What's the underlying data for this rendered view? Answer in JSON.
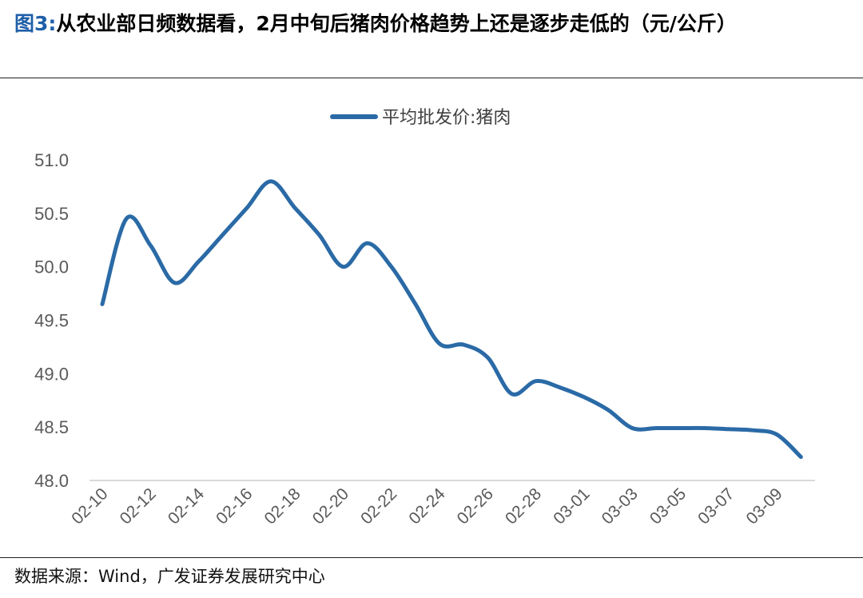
{
  "figure": {
    "label": "图3:",
    "title": "从农业部日频数据看，2月中旬后猪肉价格趋势上还是逐步走低的（元/公斤）"
  },
  "source": "数据来源：Wind，广发证券发展研究中心",
  "colors": {
    "series": "#2a6aa6",
    "axis": "#d9d9d9",
    "tick_text": "#595959",
    "title_accent": "#1f5fa8"
  },
  "chart_data": {
    "type": "line",
    "title": "",
    "xlabel": "",
    "ylabel": "",
    "ylim": [
      48.0,
      51.0
    ],
    "yticks": [
      "48.0",
      "48.5",
      "49.0",
      "49.5",
      "50.0",
      "50.5",
      "51.0"
    ],
    "xticks": [
      "02-10",
      "02-12",
      "02-14",
      "02-16",
      "02-18",
      "02-20",
      "02-22",
      "02-24",
      "02-26",
      "02-28",
      "03-01",
      "03-03",
      "03-05",
      "03-07",
      "03-09"
    ],
    "legend": "top-center",
    "grid": false,
    "series": [
      {
        "name": "平均批发价:猪肉",
        "x": [
          "02-10",
          "02-11",
          "02-12",
          "02-13",
          "02-14",
          "02-15",
          "02-16",
          "02-17",
          "02-18",
          "02-19",
          "02-20",
          "02-21",
          "02-22",
          "02-23",
          "02-24",
          "02-25",
          "02-26",
          "02-27",
          "02-28",
          "02-29",
          "03-01",
          "03-02",
          "03-03",
          "03-04",
          "03-05",
          "03-06",
          "03-07",
          "03-08",
          "03-09",
          "03-10"
        ],
        "values": [
          49.65,
          50.45,
          50.2,
          49.85,
          50.05,
          50.3,
          50.55,
          50.8,
          50.55,
          50.3,
          50.0,
          50.22,
          50.0,
          49.65,
          49.28,
          49.27,
          49.15,
          48.81,
          48.93,
          48.87,
          48.78,
          48.66,
          48.49,
          48.49,
          48.49,
          48.49,
          48.48,
          48.47,
          48.43,
          48.22
        ]
      }
    ]
  }
}
